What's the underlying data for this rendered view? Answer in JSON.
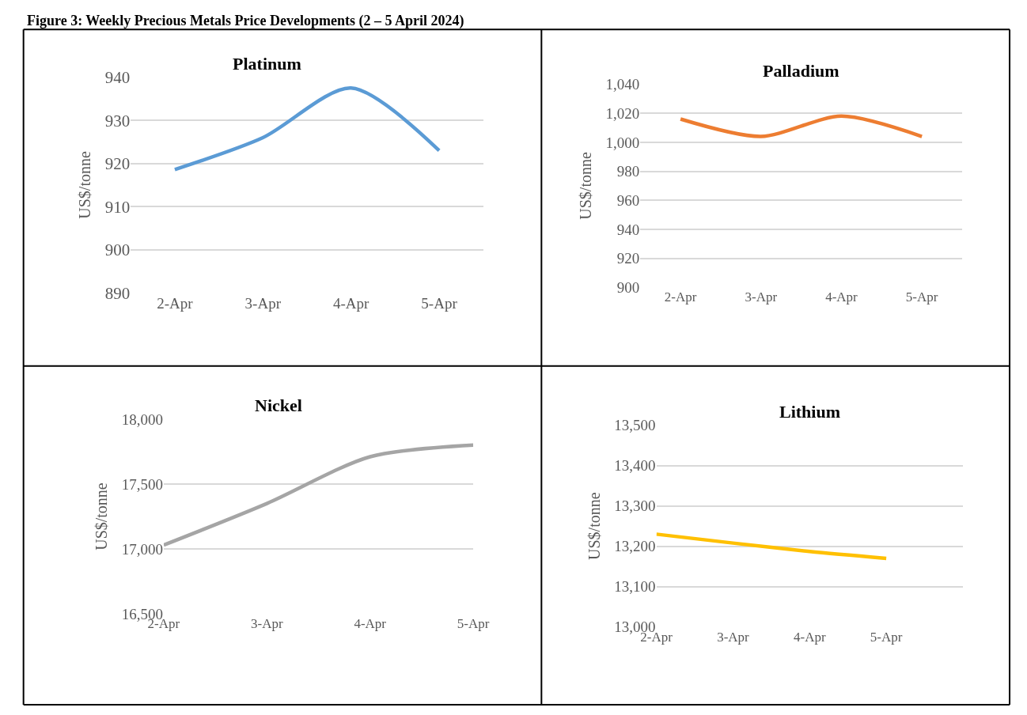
{
  "chart_data": [
    {
      "type": "line",
      "title": "Platinum",
      "ylabel": "US$/tonne",
      "annotations": [
        "Figure 3: Weekly Precious Metals Price Developments (2 – 5 April 2024)"
      ],
      "categories": [
        "2-Apr",
        "3-Apr",
        "4-Apr",
        "5-Apr"
      ],
      "series": [
        {
          "color": "#5b9bd5",
          "values": [
            918.6,
            926,
            937.5,
            923
          ]
        }
      ],
      "ylim": [
        890,
        940
      ],
      "yticks": [
        890,
        900,
        910,
        920,
        930,
        940
      ],
      "grid": "y"
    },
    {
      "type": "line",
      "title": "Palladium",
      "ylabel": "US$/tonne",
      "categories": [
        "2-Apr",
        "3-Apr",
        "4-Apr",
        "5-Apr"
      ],
      "series": [
        {
          "color": "#ed7d31",
          "values": [
            1016,
            1004,
            1018,
            1004
          ]
        }
      ],
      "ylim": [
        900,
        1040
      ],
      "yticks": [
        900,
        920,
        940,
        960,
        980,
        {
          "value": 1000,
          "label": "1,000"
        },
        {
          "value": 1020,
          "label": "1,020"
        },
        {
          "value": 1040,
          "label": "1,040"
        }
      ],
      "grid": "y"
    },
    {
      "type": "line",
      "title": "Nickel",
      "ylabel": "US$/tonne",
      "categories": [
        "2-Apr",
        "3-Apr",
        "4-Apr",
        "5-Apr"
      ],
      "series": [
        {
          "color": "#a5a5a5",
          "values": [
            17030,
            17350,
            17710,
            17800
          ]
        }
      ],
      "ylim": [
        16500,
        18000
      ],
      "yticks": [
        {
          "value": 16500,
          "label": "16,500"
        },
        {
          "value": 17000,
          "label": "17,000"
        },
        {
          "value": 17500,
          "label": "17,500"
        },
        {
          "value": 18000,
          "label": "18,000"
        }
      ],
      "grid": "y"
    },
    {
      "type": "line",
      "title": "Lithium",
      "ylabel": "US$/tonne",
      "categories": [
        "2-Apr",
        "3-Apr",
        "4-Apr",
        "5-Apr",
        null
      ],
      "series": [
        {
          "color": "#ffc000",
          "values": [
            13230,
            13208,
            13187,
            13170,
            null
          ]
        }
      ],
      "ylim": [
        13000,
        13500
      ],
      "yticks": [
        {
          "value": 13000,
          "label": "13,000"
        },
        {
          "value": 13100,
          "label": "13,100"
        },
        {
          "value": 13200,
          "label": "13,200"
        },
        {
          "value": 13300,
          "label": "13,300"
        },
        {
          "value": 13400,
          "label": "13,400"
        },
        {
          "value": 13500,
          "label": "13,500"
        }
      ],
      "grid": "y"
    }
  ]
}
